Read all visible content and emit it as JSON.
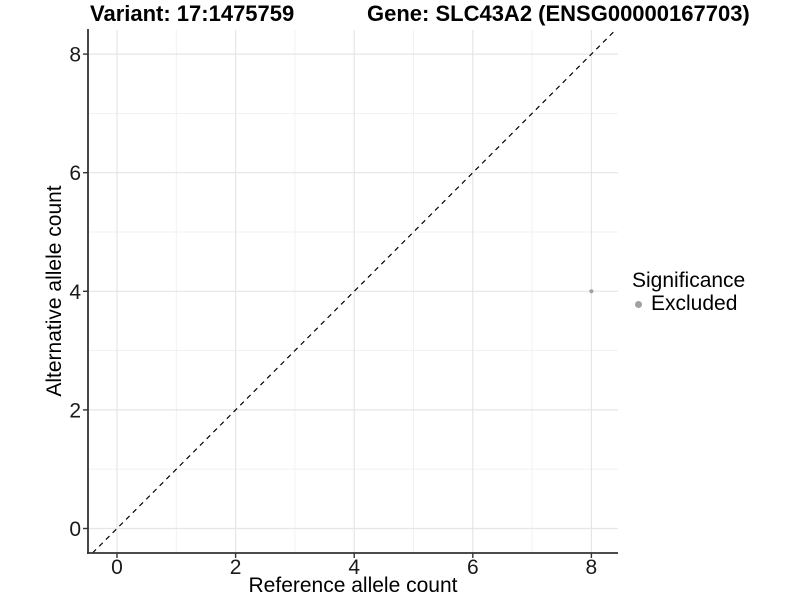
{
  "chart_data": {
    "type": "scatter",
    "titles": {
      "variant": "Variant: 17:1475759",
      "gene": "Gene: SLC43A2 (ENSG00000167703)"
    },
    "xlabel": "Reference allele count",
    "ylabel": "Alternative allele count",
    "xlim": [
      -0.45,
      8.45
    ],
    "ylim": [
      -0.45,
      8.45
    ],
    "x_ticks": [
      0,
      2,
      4,
      6,
      8
    ],
    "y_ticks": [
      0,
      2,
      4,
      6,
      8
    ],
    "x_minor_ticks": [
      1,
      3,
      5,
      7
    ],
    "y_minor_ticks": [
      1,
      3,
      5,
      7
    ],
    "grid": true,
    "reference_line": {
      "type": "identity y=x",
      "style": "dashed",
      "color": "#000000"
    },
    "series": [
      {
        "name": "Excluded",
        "color": "#a1a1a1",
        "points": [
          {
            "x": 8,
            "y": 4
          }
        ]
      }
    ],
    "legend": {
      "title": "Significance",
      "position": "right",
      "items": [
        {
          "label": "Excluded",
          "color": "#a1a1a1"
        }
      ]
    },
    "style": {
      "background": "#ffffff",
      "grid_major_color": "#e6e6e6",
      "grid_minor_color": "#f0f0f0",
      "axis_line_color": "#333333",
      "tick_label_color": "#1a1a1a",
      "point_color": "#a1a1a1"
    }
  }
}
